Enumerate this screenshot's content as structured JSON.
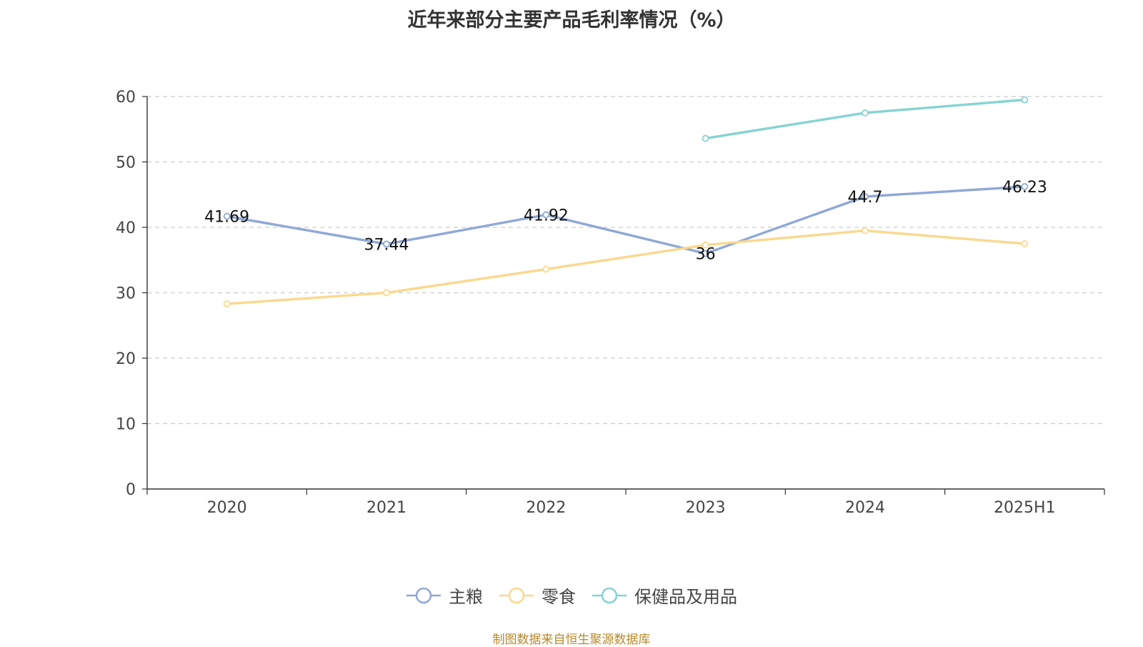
{
  "chart_data": {
    "type": "line",
    "title": "近年来部分主要产品毛利率情况（%）",
    "categories": [
      "2020",
      "2021",
      "2022",
      "2023",
      "2024",
      "2025H1"
    ],
    "ylim": [
      0,
      60
    ],
    "yticks": [
      0,
      10,
      20,
      30,
      40,
      50,
      60
    ],
    "grid": true,
    "legend_position": "bottom",
    "series": [
      {
        "name": "主粮",
        "color": "#8ea8d6",
        "values": [
          41.69,
          37.44,
          41.92,
          36,
          44.7,
          46.23
        ],
        "show_labels": true
      },
      {
        "name": "零食",
        "color": "#fad88f",
        "values": [
          28.3,
          30.0,
          33.6,
          37.3,
          39.5,
          37.5
        ],
        "show_labels": false
      },
      {
        "name": "保健品及用品",
        "color": "#86d3d3",
        "values": [
          null,
          null,
          null,
          53.6,
          57.5,
          59.5
        ],
        "show_labels": false
      }
    ]
  },
  "source_note": "制图数据来自恒生聚源数据库"
}
